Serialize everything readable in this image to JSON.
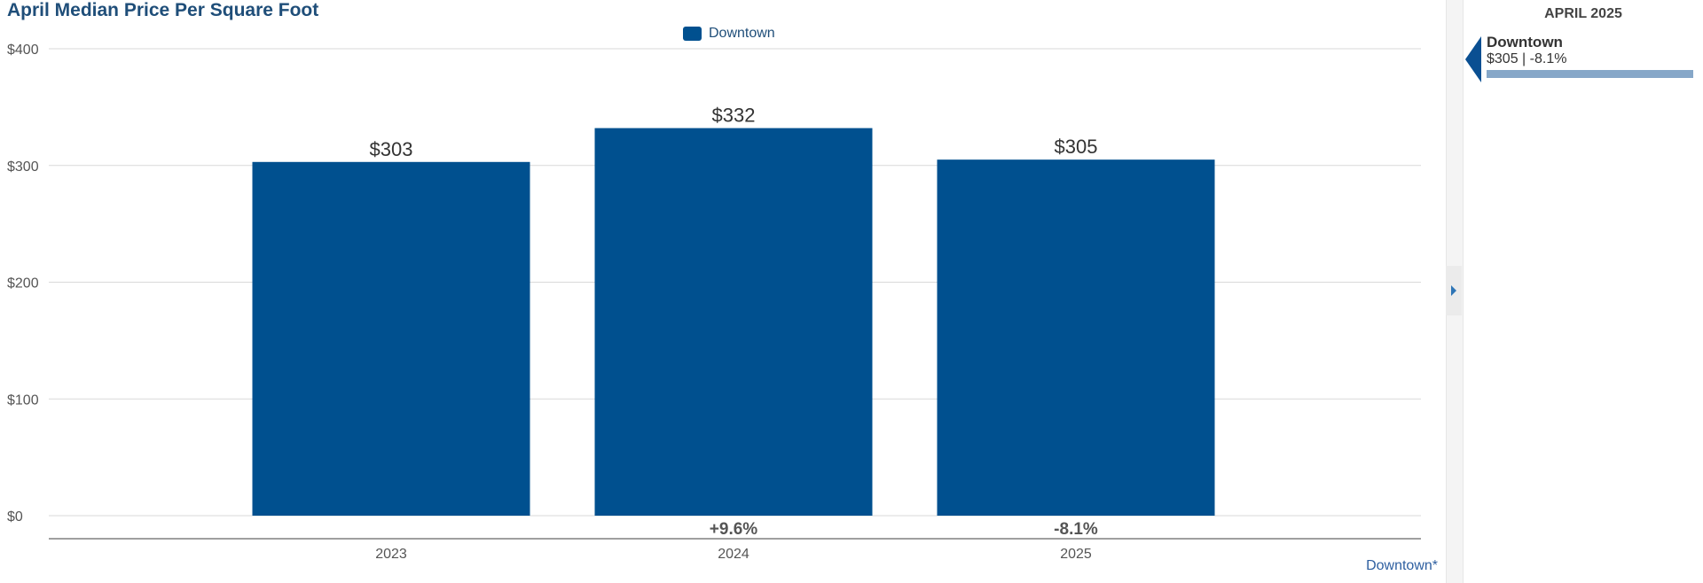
{
  "chart_data": {
    "type": "bar",
    "title": "April Median Price Per Square Foot",
    "categories": [
      "2023",
      "2024",
      "2025"
    ],
    "series": [
      {
        "name": "Downtown",
        "values": [
          303,
          332,
          305
        ],
        "value_labels": [
          "$303",
          "$332",
          "$305"
        ],
        "color": "#00508f"
      }
    ],
    "change_labels": [
      "",
      "+9.6%",
      "-8.1%"
    ],
    "ylim": [
      0,
      400
    ],
    "yticks": [
      0,
      100,
      200,
      300,
      400
    ],
    "ytick_labels": [
      "$0",
      "$100",
      "$200",
      "$300",
      "$400"
    ],
    "xlabel": "",
    "ylabel": "",
    "grid": true,
    "legend": "top-center"
  },
  "footer": {
    "link": "Downtown*"
  },
  "side_panel": {
    "header": "APRIL 2025",
    "items": [
      {
        "name": "Downtown",
        "value_text": "$305 | -8.1%",
        "bar_color": "#86a7c8",
        "pointer_color": "#0a4f92"
      }
    ]
  },
  "icons": {
    "collapse": "caret-right-icon",
    "pointer": "pointer-left-icon"
  }
}
